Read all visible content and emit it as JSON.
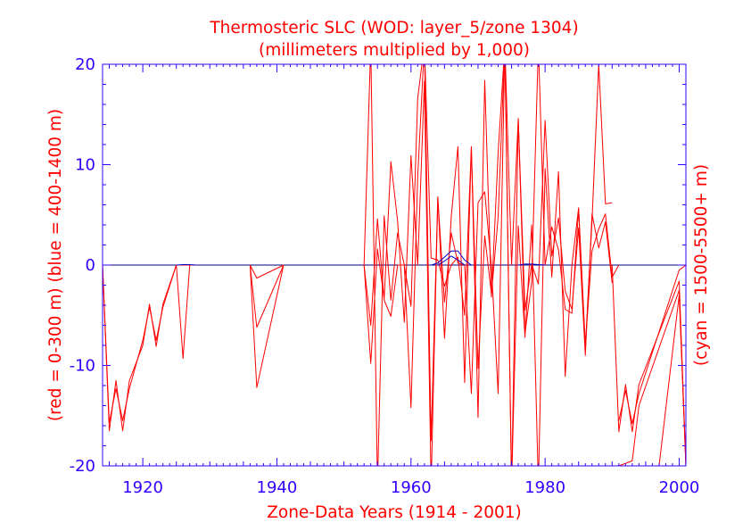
{
  "chart_data": {
    "type": "line",
    "title": "Thermosteric SLC (WOD: layer_5/zone 1304)",
    "subtitle": "(millimeters multiplied by 1,000)",
    "xlabel": "Zone-Data Years (1914 - 2001)",
    "ylabel_left": "(red = 0-300 m)  (blue = 400-1400 m)",
    "ylabel_right": "(cyan = 1500-5500+ m)",
    "xlim": [
      1914,
      2001
    ],
    "ylim": [
      -20,
      20
    ],
    "xticks": [
      1920,
      1940,
      1960,
      1980,
      2000
    ],
    "xtick_labels": [
      "1920",
      "1940",
      "1960",
      "1980",
      "2000"
    ],
    "yticks": [
      -20,
      -10,
      0,
      10,
      20
    ],
    "ytick_labels": [
      "-20",
      "-10",
      "0",
      "10",
      "20"
    ],
    "colors": {
      "red": "#ff0000",
      "blue": "#0000cc",
      "axis": "#3300ff",
      "zero_line": "#000080"
    },
    "series": [
      {
        "name": "red-0-300m-a",
        "color": "#ff0000",
        "x": [
          1914,
          1915,
          1916,
          1917,
          1918,
          1920,
          1921,
          1922,
          1923,
          1925,
          1926,
          1927,
          1928
        ],
        "y": [
          0,
          -16.5,
          -11.5,
          -16.5,
          -11.5,
          -8,
          -3.9,
          -8.1,
          -3.9,
          0,
          -9.3,
          0,
          0
        ]
      },
      {
        "name": "red-0-300m-b",
        "color": "#ff0000",
        "x": [
          1914,
          1915,
          1916,
          1917,
          1918,
          1920,
          1921,
          1922,
          1923,
          1925,
          1928
        ],
        "y": [
          0,
          -15.7,
          -12.3,
          -15.5,
          -12.3,
          -7.5,
          -4.2,
          -7.5,
          -4.2,
          0,
          0
        ]
      },
      {
        "name": "red-0-300m-c",
        "color": "#ff0000",
        "x": [
          1936,
          1937,
          1941
        ],
        "y": [
          0,
          -12.2,
          0
        ]
      },
      {
        "name": "red-0-300m-d",
        "color": "#ff0000",
        "x": [
          1936,
          1937,
          1941
        ],
        "y": [
          0,
          -6.2,
          0
        ]
      },
      {
        "name": "red-0-300m-e",
        "color": "#ff0000",
        "x": [
          1936,
          1937,
          1941
        ],
        "y": [
          0,
          -1.3,
          0
        ]
      },
      {
        "name": "red-0-300m-f",
        "color": "#ff0000",
        "x": [
          1953,
          1954,
          1955,
          1956,
          1957,
          1958,
          1959,
          1960,
          1961,
          1962,
          1963,
          1964,
          1965,
          1966,
          1967,
          1968,
          1969,
          1970,
          1971,
          1972,
          1973,
          1974,
          1975,
          1976,
          1977,
          1978,
          1979,
          1980,
          1981,
          1982,
          1983,
          1984,
          1985,
          1986,
          1987,
          1988,
          1989,
          1990
        ],
        "y": [
          0,
          22,
          -22,
          4.9,
          -3.5,
          3.2,
          0,
          -14.2,
          8.8,
          22,
          -17.5,
          6.8,
          -7.3,
          4.8,
          11.8,
          -11.7,
          11.8,
          -15.2,
          18.4,
          -3.2,
          11.2,
          22,
          -22,
          3.9,
          -7.2,
          4,
          -22,
          9.6,
          -1.2,
          9.3,
          -11.1,
          0,
          5.7,
          -8.3,
          4.4,
          20,
          6.1,
          6.2
        ]
      },
      {
        "name": "red-0-300m-g",
        "color": "#ff0000",
        "x": [
          1953,
          1954,
          1955,
          1956,
          1957,
          1958,
          1959,
          1960,
          1961,
          1962,
          1963,
          1964,
          1965,
          1966,
          1967,
          1968,
          1969,
          1970,
          1971,
          1972,
          1973,
          1974,
          1975,
          1976,
          1977,
          1978,
          1979,
          1980,
          1981,
          1982,
          1983,
          1984,
          1985,
          1986,
          1987,
          1988,
          1989,
          1990
        ],
        "y": [
          0,
          -9.8,
          1.6,
          -3.4,
          10.3,
          4.4,
          -5.7,
          10.9,
          0,
          18.3,
          -22,
          6.7,
          -3.7,
          3.2,
          0.2,
          0,
          -12.8,
          6.2,
          7.3,
          -0.2,
          -12.8,
          22,
          -22,
          14.5,
          -4.5,
          0.1,
          -1.9,
          14.4,
          0.9,
          4.7,
          -2.6,
          -4.4,
          3.7,
          -9,
          5.1,
          1.7,
          4.3,
          -1.8
        ]
      },
      {
        "name": "red-0-300m-h",
        "color": "#ff0000",
        "x": [
          1953,
          1954,
          1955,
          1956,
          1957,
          1958,
          1959,
          1960,
          1961,
          1962,
          1963,
          1964,
          1965,
          1966,
          1967,
          1968,
          1969,
          1970,
          1971,
          1972,
          1973,
          1974,
          1975,
          1976,
          1977,
          1978,
          1979,
          1980,
          1981,
          1982,
          1983,
          1984,
          1985,
          1986,
          1987,
          1988,
          1989,
          1990,
          1991
        ],
        "y": [
          0,
          -6,
          4.6,
          -3.5,
          -5.1,
          0,
          0,
          -4.1,
          16.6,
          22,
          0.7,
          0.5,
          -2.1,
          0,
          0.8,
          -5,
          11.7,
          -10.3,
          2.9,
          -2.9,
          4.8,
          22,
          0,
          14.6,
          -6.8,
          -1.7,
          22,
          0,
          3.8,
          1.5,
          -4.4,
          -4.8,
          5.6,
          -7.9,
          1.4,
          3.6,
          5.1,
          -1.2,
          0
        ]
      },
      {
        "name": "red-0-300m-i",
        "color": "#ff0000",
        "x": [
          1990,
          1991,
          1992,
          1993,
          1994,
          2000,
          2001
        ],
        "y": [
          0,
          -16.6,
          -11.9,
          -16.6,
          -11.9,
          -1.6,
          -20
        ]
      },
      {
        "name": "red-0-300m-j",
        "color": "#ff0000",
        "x": [
          1991,
          1992,
          1993,
          1994,
          2000,
          2001
        ],
        "y": [
          -15.5,
          -12.5,
          -15.8,
          -12.8,
          -0.5,
          0
        ]
      },
      {
        "name": "red-0-300m-k",
        "color": "#ff0000",
        "x": [
          1991,
          1993,
          1994,
          2000,
          2001
        ],
        "y": [
          -20,
          -19.5,
          -14,
          -2.5,
          -20
        ]
      },
      {
        "name": "red-0-300m-l",
        "color": "#ff0000",
        "x": [
          1995,
          1997,
          2000,
          2001
        ],
        "y": [
          -20,
          -20,
          -3,
          -20
        ]
      },
      {
        "name": "blue-400-1400m-a",
        "color": "#0000cc",
        "x": [
          1925,
          1926,
          1927,
          1928
        ],
        "y": [
          0,
          0.05,
          0.05,
          0
        ]
      },
      {
        "name": "blue-400-1400m-b",
        "color": "#0000cc",
        "x": [
          1963,
          1964,
          1965,
          1966,
          1967,
          1968,
          1969
        ],
        "y": [
          0,
          0.2,
          0.8,
          1.4,
          1.4,
          0.5,
          0
        ]
      },
      {
        "name": "blue-400-1400m-c",
        "color": "#0000cc",
        "x": [
          1964,
          1965,
          1966,
          1967,
          1968
        ],
        "y": [
          0,
          0.4,
          0.9,
          0.5,
          0
        ]
      },
      {
        "name": "blue-400-1400m-d",
        "color": "#0000cc",
        "x": [
          1976,
          1977,
          1978,
          1979,
          1980
        ],
        "y": [
          0,
          0.1,
          0.1,
          0.05,
          0
        ]
      }
    ]
  }
}
